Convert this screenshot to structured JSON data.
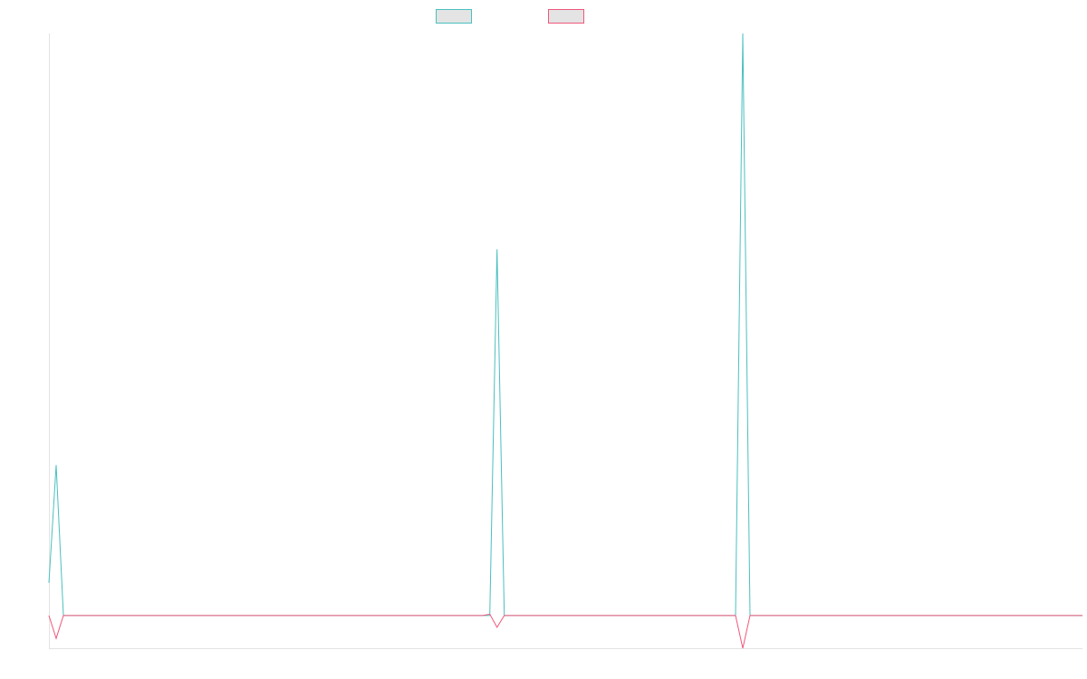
{
  "chart_data": {
    "type": "line",
    "title": "",
    "xlabel": "",
    "ylabel": "",
    "n_points": 144,
    "series": [
      {
        "color": "#4bbfbf",
        "fill": "#e4e4e4",
        "values": [
          {
            "i": 0,
            "v": 5
          },
          {
            "i": 1,
            "v": 23
          },
          {
            "i": 2,
            "v": 0
          },
          {
            "i": 61,
            "v": 0
          },
          {
            "i": 62,
            "v": 56
          },
          {
            "i": 63,
            "v": 0
          },
          {
            "i": 95,
            "v": 0
          },
          {
            "i": 96,
            "v": 89
          },
          {
            "i": 97,
            "v": 0
          },
          {
            "i": 143,
            "v": 0
          }
        ]
      },
      {
        "color": "#f0577b",
        "fill": "#e4e4e4",
        "values": [
          {
            "i": 0,
            "v": 0
          },
          {
            "i": 1,
            "v": -3.5
          },
          {
            "i": 2,
            "v": 0
          },
          {
            "i": 60,
            "v": 0
          },
          {
            "i": 61,
            "v": 0.2
          },
          {
            "i": 62,
            "v": -1.8
          },
          {
            "i": 63,
            "v": 0
          },
          {
            "i": 95,
            "v": 0
          },
          {
            "i": 96,
            "v": -5
          },
          {
            "i": 97,
            "v": 0
          },
          {
            "i": 143,
            "v": 0
          }
        ]
      }
    ],
    "ylim": [
      -5,
      89
    ],
    "grid": false,
    "legend_position": "top-center"
  }
}
